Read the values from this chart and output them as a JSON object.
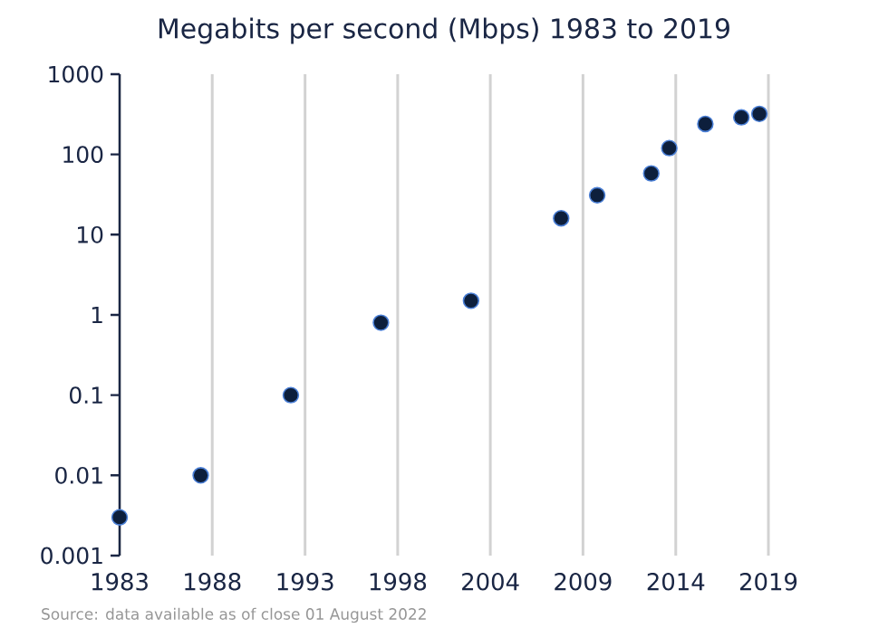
{
  "chart_data": {
    "type": "scatter",
    "title": "Megabits per second (Mbps) 1983 to 2019",
    "x": [
      1983,
      1987.5,
      1992.5,
      1997.5,
      2002.5,
      2007.5,
      2009.5,
      2012.5,
      2013.5,
      2015.5,
      2017.5,
      2018.5
    ],
    "series": [
      {
        "color": "#0d1f3c",
        "values": [
          0.003,
          0.01,
          0.1,
          0.8,
          1.5,
          16,
          31,
          58,
          120,
          240,
          290,
          320
        ]
      }
    ],
    "xlim": [
      1983,
      2019
    ],
    "xticks": [
      {
        "value": 1983,
        "label": "1983"
      },
      {
        "value": 1988.14,
        "label": "1988"
      },
      {
        "value": 1993.29,
        "label": "1993"
      },
      {
        "value": 1998.43,
        "label": "1998"
      },
      {
        "value": 2003.57,
        "label": "2004"
      },
      {
        "value": 2008.71,
        "label": "2009"
      },
      {
        "value": 2013.86,
        "label": "2014"
      },
      {
        "value": 2019,
        "label": "2019"
      }
    ],
    "ylim": [
      0.001,
      1000
    ],
    "yticks": [
      0.001,
      0.01,
      0.1,
      1,
      10,
      100,
      1000
    ],
    "log": "y",
    "grid": "x",
    "annotations": [
      "Source: data available as of close 01 August 2022"
    ]
  }
}
